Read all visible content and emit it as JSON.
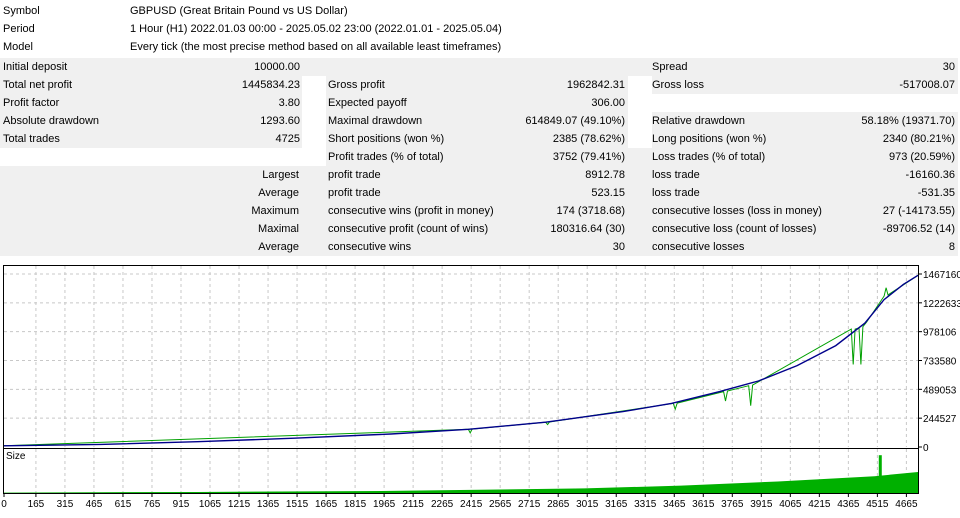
{
  "header": [
    {
      "key": "Symbol",
      "value": "GBPUSD (Great Britain Pound vs US Dollar)"
    },
    {
      "key": "Period",
      "value": "1 Hour (H1) 2022.01.03 00:00 - 2025.05.02 23:00 (2022.01.01 - 2025.05.04)"
    },
    {
      "key": "Model",
      "value": "Every tick (the most precise method based on all available least timeframes)"
    }
  ],
  "stats": {
    "initial_deposit": {
      "label": "Initial deposit",
      "value": "10000.00"
    },
    "spread": {
      "label": "Spread",
      "value": "30"
    },
    "total_net_profit": {
      "label": "Total net profit",
      "value": "1445834.23"
    },
    "gross_profit": {
      "label": "Gross profit",
      "value": "1962842.31"
    },
    "gross_loss": {
      "label": "Gross loss",
      "value": "-517008.07"
    },
    "profit_factor": {
      "label": "Profit factor",
      "value": "3.80"
    },
    "expected_payoff": {
      "label": "Expected payoff",
      "value": "306.00"
    },
    "absolute_drawdown": {
      "label": "Absolute drawdown",
      "value": "1293.60"
    },
    "maximal_drawdown": {
      "label": "Maximal drawdown",
      "value": "614849.07 (49.10%)"
    },
    "relative_drawdown": {
      "label": "Relative drawdown",
      "value": "58.18% (19371.70)"
    },
    "total_trades": {
      "label": "Total trades",
      "value": "4725"
    },
    "short_positions": {
      "label": "Short positions (won %)",
      "value": "2385 (78.62%)"
    },
    "long_positions": {
      "label": "Long positions (won %)",
      "value": "2340 (80.21%)"
    },
    "profit_trades": {
      "label": "Profit trades (% of total)",
      "value": "3752 (79.41%)"
    },
    "loss_trades": {
      "label": "Loss trades (% of total)",
      "value": "973 (20.59%)"
    },
    "largest_label": "Largest",
    "largest_profit": {
      "label": "profit trade",
      "value": "8912.78"
    },
    "largest_loss": {
      "label": "loss trade",
      "value": "-16160.36"
    },
    "average_label": "Average",
    "average_profit": {
      "label": "profit trade",
      "value": "523.15"
    },
    "average_loss": {
      "label": "loss trade",
      "value": "-531.35"
    },
    "maximum_label": "Maximum",
    "max_cons_wins": {
      "label": "consecutive wins (profit in money)",
      "value": "174 (3718.68)"
    },
    "max_cons_losses": {
      "label": "consecutive losses (loss in money)",
      "value": "27 (-14173.55)"
    },
    "maximal_label": "Maximal",
    "maximal_cons_profit": {
      "label": "consecutive profit (count of wins)",
      "value": "180316.64 (30)"
    },
    "maximal_cons_loss": {
      "label": "consecutive loss (count of losses)",
      "value": "-89706.52 (14)"
    },
    "average2_label": "Average",
    "avg_cons_wins": {
      "label": "consecutive wins",
      "value": "30"
    },
    "avg_cons_losses": {
      "label": "consecutive losses",
      "value": "8"
    }
  },
  "chart_data": {
    "type": "line",
    "size_label": "Size",
    "y_ticks": [
      "1467160",
      "1222633",
      "978106",
      "733580",
      "489053",
      "244527",
      "0"
    ],
    "y_tick_values": [
      1467160,
      1222633,
      978106,
      733580,
      489053,
      244527,
      0
    ],
    "x_ticks": [
      "0",
      "165",
      "315",
      "465",
      "615",
      "765",
      "915",
      "1065",
      "1215",
      "1365",
      "1515",
      "1665",
      "1815",
      "1965",
      "2115",
      "2265",
      "2415",
      "2565",
      "2715",
      "2865",
      "3015",
      "3165",
      "3315",
      "3465",
      "3615",
      "3765",
      "3915",
      "4065",
      "4215",
      "4365",
      "4515",
      "4665"
    ],
    "x_tick_values": [
      0,
      165,
      315,
      465,
      615,
      765,
      915,
      1065,
      1215,
      1365,
      1515,
      1665,
      1815,
      1965,
      2115,
      2265,
      2415,
      2565,
      2715,
      2865,
      3015,
      3165,
      3315,
      3465,
      3615,
      3765,
      3915,
      4065,
      4215,
      4365,
      4515,
      4665
    ],
    "x_max": 4725,
    "ylim": [
      0,
      1467160
    ],
    "series": [
      {
        "role": "balance",
        "color": "#00008b",
        "x": [
          0,
          500,
          1000,
          1500,
          2000,
          2400,
          2800,
          3200,
          3450,
          3700,
          3900,
          4100,
          4300,
          4450,
          4550,
          4650,
          4725
        ],
        "y": [
          10000,
          22000,
          45000,
          75000,
          110000,
          150000,
          210000,
          300000,
          370000,
          470000,
          560000,
          690000,
          860000,
          1050000,
          1250000,
          1380000,
          1455834
        ]
      },
      {
        "role": "equity",
        "color": "#00a000",
        "x": [
          0,
          2400,
          2410,
          2420,
          2800,
          2810,
          2820,
          3460,
          3470,
          3480,
          3720,
          3730,
          3740,
          3850,
          3860,
          3870,
          4380,
          4390,
          4400,
          4420,
          4430,
          4440,
          4460,
          4550,
          4560,
          4570,
          4725
        ],
        "y": [
          10000,
          150000,
          120000,
          152000,
          210000,
          190000,
          212000,
          370000,
          320000,
          372000,
          470000,
          390000,
          475000,
          520000,
          350000,
          525000,
          1000000,
          700000,
          1000000,
          1010000,
          700000,
          1020000,
          1060000,
          1280000,
          1350000,
          1290000,
          1455834
        ]
      },
      {
        "role": "size",
        "color": "#00b000",
        "x": [
          0,
          1000,
          2000,
          3000,
          3500,
          4000,
          4500,
          4725
        ],
        "y": [
          0.02,
          0.05,
          0.1,
          0.22,
          0.35,
          0.55,
          0.8,
          1.0
        ]
      }
    ],
    "size_spike": {
      "x": 4530,
      "y": 1.8
    }
  }
}
